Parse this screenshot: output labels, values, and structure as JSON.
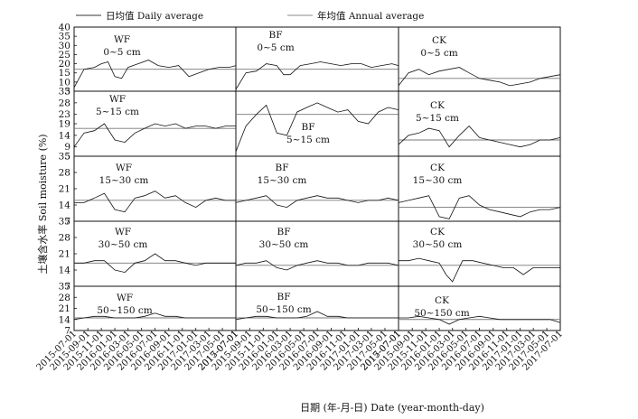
{
  "legend": {
    "daily": "日均值 Daily average",
    "annual": "年均值 Annual average"
  },
  "ylabel": "土壤含水率 Soil moisture (%)",
  "xlabel": "日期 (年-月-日) Date (year-month-day)",
  "x_ticks": [
    "2015-07-01",
    "2015-09-01",
    "2015-11-01",
    "2016-01-01",
    "2016-03-01",
    "2016-05-01",
    "2016-07-01",
    "2016-09-01",
    "2016-11-01",
    "2017-01-01",
    "2017-03-01",
    "2017-05-01",
    "2017-07-01"
  ],
  "columns": [
    "WF",
    "BF",
    "CK"
  ],
  "chart_data": {
    "type": "line",
    "x_range": [
      "2015-07-01",
      "2017-07-01"
    ],
    "rows": [
      {
        "depth": "0~5 cm",
        "y_ticks": [
          5,
          10,
          15,
          20,
          25,
          30,
          35,
          40
        ],
        "ylim": [
          5,
          40
        ],
        "panels": [
          {
            "label": "WF",
            "annual": 17,
            "x": [
              "2015-07-01",
              "2015-08-15",
              "2015-10-01",
              "2015-11-01",
              "2015-12-01",
              "2016-01-01",
              "2016-02-01",
              "2016-03-01",
              "2016-04-15",
              "2016-06-01",
              "2016-07-15",
              "2016-09-01",
              "2016-10-15",
              "2016-12-01",
              "2017-01-15",
              "2017-03-01",
              "2017-04-15",
              "2017-06-01",
              "2017-07-01"
            ],
            "y": [
              7,
              17,
              18,
              20,
              21,
              13,
              12,
              18,
              20,
              22,
              19,
              18,
              19,
              13,
              15,
              17,
              18,
              18,
              19
            ]
          },
          {
            "label": "BF",
            "annual": 17,
            "x": [
              "2015-07-01",
              "2015-08-15",
              "2015-10-01",
              "2015-11-15",
              "2016-01-01",
              "2016-02-01",
              "2016-03-01",
              "2016-04-15",
              "2016-06-01",
              "2016-07-15",
              "2016-09-01",
              "2016-10-15",
              "2016-12-01",
              "2017-01-15",
              "2017-03-01",
              "2017-04-15",
              "2017-06-01",
              "2017-07-01"
            ],
            "y": [
              6,
              15,
              16,
              20,
              19,
              14,
              14,
              19,
              20,
              21,
              20,
              19,
              20,
              20,
              18,
              19,
              20,
              19
            ]
          },
          {
            "label": "CK",
            "annual": 12,
            "x": [
              "2015-07-01",
              "2015-08-15",
              "2015-10-01",
              "2015-11-15",
              "2016-01-01",
              "2016-02-15",
              "2016-04-01",
              "2016-05-15",
              "2016-07-01",
              "2016-08-15",
              "2016-10-01",
              "2016-11-15",
              "2017-01-01",
              "2017-02-15",
              "2017-04-01",
              "2017-05-15",
              "2017-07-01"
            ],
            "y": [
              8,
              15,
              17,
              14,
              16,
              17,
              18,
              15,
              12,
              11,
              10,
              8,
              9,
              10,
              12,
              13,
              14
            ]
          }
        ]
      },
      {
        "depth": "5~15 cm",
        "y_ticks": [
          5,
          9,
          14,
          19,
          23,
          28,
          33
        ],
        "ylim": [
          5,
          33
        ],
        "panels": [
          {
            "label": "WF",
            "annual": 17,
            "x": [
              "2015-07-01",
              "2015-08-15",
              "2015-10-01",
              "2015-11-15",
              "2016-01-01",
              "2016-02-15",
              "2016-04-01",
              "2016-05-15",
              "2016-07-01",
              "2016-08-15",
              "2016-10-01",
              "2016-11-15",
              "2017-01-01",
              "2017-02-15",
              "2017-04-01",
              "2017-05-15",
              "2017-07-01"
            ],
            "y": [
              9,
              15,
              16,
              19,
              12,
              11,
              15,
              17,
              19,
              18,
              19,
              17,
              18,
              18,
              17,
              18,
              18
            ]
          },
          {
            "label": "BF",
            "annual": 23,
            "x": [
              "2015-07-01",
              "2015-08-15",
              "2015-10-01",
              "2015-11-15",
              "2016-01-01",
              "2016-02-15",
              "2016-04-01",
              "2016-05-15",
              "2016-07-01",
              "2016-08-15",
              "2016-10-01",
              "2016-11-15",
              "2017-01-01",
              "2017-02-15",
              "2017-04-01",
              "2017-05-15",
              "2017-07-01"
            ],
            "y": [
              7,
              18,
              23,
              27,
              15,
              14,
              24,
              26,
              28,
              26,
              24,
              25,
              20,
              19,
              24,
              26,
              25
            ]
          },
          {
            "label": "CK",
            "annual": 12,
            "x": [
              "2015-07-01",
              "2015-08-15",
              "2015-10-01",
              "2015-11-15",
              "2016-01-01",
              "2016-02-15",
              "2016-04-01",
              "2016-05-15",
              "2016-07-01",
              "2016-08-15",
              "2016-10-01",
              "2016-11-15",
              "2017-01-01",
              "2017-02-15",
              "2017-04-01",
              "2017-05-15",
              "2017-07-01"
            ],
            "y": [
              10,
              14,
              15,
              17,
              16,
              9,
              14,
              18,
              13,
              12,
              11,
              10,
              9,
              10,
              12,
              12,
              13
            ]
          }
        ]
      },
      {
        "depth": "15~30 cm",
        "y_ticks": [
          7,
          14,
          21,
          28,
          35
        ],
        "ylim": [
          7,
          35
        ],
        "panels": [
          {
            "label": "WF",
            "annual": 16,
            "x": [
              "2015-07-01",
              "2015-08-15",
              "2015-10-01",
              "2015-11-15",
              "2016-01-01",
              "2016-02-15",
              "2016-04-01",
              "2016-05-15",
              "2016-07-01",
              "2016-08-15",
              "2016-10-01",
              "2016-11-15",
              "2017-01-01",
              "2017-02-15",
              "2017-04-01",
              "2017-05-15",
              "2017-07-01"
            ],
            "y": [
              15,
              15,
              17,
              19,
              12,
              11,
              17,
              18,
              20,
              17,
              18,
              15,
              13,
              16,
              17,
              16,
              16
            ]
          },
          {
            "label": "BF",
            "annual": 16,
            "x": [
              "2015-07-01",
              "2015-08-15",
              "2015-10-01",
              "2015-11-15",
              "2016-01-01",
              "2016-02-15",
              "2016-04-01",
              "2016-05-15",
              "2016-07-01",
              "2016-08-15",
              "2016-10-01",
              "2016-11-15",
              "2017-01-01",
              "2017-02-15",
              "2017-04-01",
              "2017-05-15",
              "2017-07-01"
            ],
            "y": [
              15,
              16,
              17,
              18,
              14,
              13,
              16,
              17,
              18,
              17,
              17,
              16,
              15,
              16,
              16,
              17,
              16
            ]
          },
          {
            "label": "CK",
            "annual": 13,
            "x": [
              "2015-07-01",
              "2015-08-15",
              "2015-10-01",
              "2015-11-15",
              "2016-01-01",
              "2016-02-15",
              "2016-04-01",
              "2016-05-15",
              "2016-07-01",
              "2016-08-15",
              "2016-10-01",
              "2016-11-15",
              "2017-01-01",
              "2017-02-15",
              "2017-04-01",
              "2017-05-15",
              "2017-07-01"
            ],
            "y": [
              15,
              16,
              17,
              18,
              9,
              8,
              17,
              18,
              14,
              12,
              11,
              10,
              9,
              11,
              12,
              12,
              13
            ]
          }
        ]
      },
      {
        "depth": "30~50 cm",
        "y_ticks": [
          7,
          14,
          21,
          28,
          35
        ],
        "ylim": [
          7,
          35
        ],
        "panels": [
          {
            "label": "WF",
            "annual": 17,
            "x": [
              "2015-07-01",
              "2015-08-15",
              "2015-10-01",
              "2015-11-15",
              "2016-01-01",
              "2016-02-15",
              "2016-04-01",
              "2016-05-15",
              "2016-07-01",
              "2016-08-15",
              "2016-10-01",
              "2016-11-15",
              "2017-01-01",
              "2017-02-15",
              "2017-04-01",
              "2017-05-15",
              "2017-07-01"
            ],
            "y": [
              17,
              17,
              18,
              18,
              14,
              13,
              17,
              18,
              21,
              18,
              18,
              17,
              16,
              17,
              17,
              17,
              17
            ]
          },
          {
            "label": "BF",
            "annual": 16,
            "x": [
              "2015-07-01",
              "2015-08-15",
              "2015-10-01",
              "2015-11-15",
              "2016-01-01",
              "2016-02-15",
              "2016-04-01",
              "2016-05-15",
              "2016-07-01",
              "2016-08-15",
              "2016-10-01",
              "2016-11-15",
              "2017-01-01",
              "2017-02-15",
              "2017-04-01",
              "2017-05-15",
              "2017-07-01"
            ],
            "y": [
              16,
              17,
              17,
              18,
              15,
              14,
              16,
              17,
              18,
              17,
              17,
              16,
              16,
              17,
              17,
              17,
              16
            ]
          },
          {
            "label": "CK",
            "annual": 16,
            "x": [
              "2015-07-01",
              "2015-08-15",
              "2015-10-01",
              "2015-11-15",
              "2016-01-01",
              "2016-02-01",
              "2016-03-01",
              "2016-04-15",
              "2016-06-01",
              "2016-07-15",
              "2016-09-01",
              "2016-10-15",
              "2016-12-01",
              "2017-01-15",
              "2017-03-01",
              "2017-04-15",
              "2017-06-01",
              "2017-07-01"
            ],
            "y": [
              18,
              18,
              19,
              18,
              17,
              12,
              9,
              18,
              18,
              17,
              16,
              15,
              15,
              12,
              15,
              15,
              15,
              15
            ]
          }
        ]
      },
      {
        "depth": "50~150 cm",
        "y_ticks": [
          7,
          14,
          21,
          28,
          35
        ],
        "ylim": [
          7,
          35
        ],
        "panels": [
          {
            "label": "WF",
            "annual": 15,
            "x": [
              "2015-07-01",
              "2015-08-15",
              "2015-10-01",
              "2015-11-15",
              "2016-01-01",
              "2016-02-15",
              "2016-04-01",
              "2016-05-15",
              "2016-07-01",
              "2016-08-15",
              "2016-10-01",
              "2016-11-15",
              "2017-01-01",
              "2017-02-15",
              "2017-04-01",
              "2017-05-15",
              "2017-07-01"
            ],
            "y": [
              14,
              15,
              16,
              16,
              15,
              15,
              15,
              16,
              18,
              16,
              16,
              15,
              15,
              15,
              15,
              15,
              15
            ]
          },
          {
            "label": "BF",
            "annual": 15,
            "x": [
              "2015-07-01",
              "2015-08-15",
              "2015-10-01",
              "2015-11-15",
              "2016-01-01",
              "2016-02-15",
              "2016-04-01",
              "2016-05-15",
              "2016-07-01",
              "2016-08-15",
              "2016-10-01",
              "2016-11-15",
              "2017-01-01",
              "2017-02-15",
              "2017-04-01",
              "2017-05-15",
              "2017-07-01"
            ],
            "y": [
              14,
              15,
              16,
              16,
              15,
              15,
              15,
              16,
              19,
              16,
              16,
              15,
              15,
              15,
              15,
              15,
              15
            ]
          },
          {
            "label": "CK",
            "annual": 14,
            "x": [
              "2015-07-01",
              "2015-08-15",
              "2015-10-01",
              "2015-11-15",
              "2016-01-01",
              "2016-02-15",
              "2016-04-01",
              "2016-05-15",
              "2016-07-01",
              "2016-08-15",
              "2016-10-01",
              "2016-11-15",
              "2017-01-01",
              "2017-02-15",
              "2017-04-01",
              "2017-05-15",
              "2017-07-01"
            ],
            "y": [
              15,
              15,
              16,
              15,
              14,
              11,
              14,
              15,
              16,
              15,
              14,
              14,
              14,
              14,
              14,
              14,
              12
            ]
          }
        ]
      }
    ]
  }
}
